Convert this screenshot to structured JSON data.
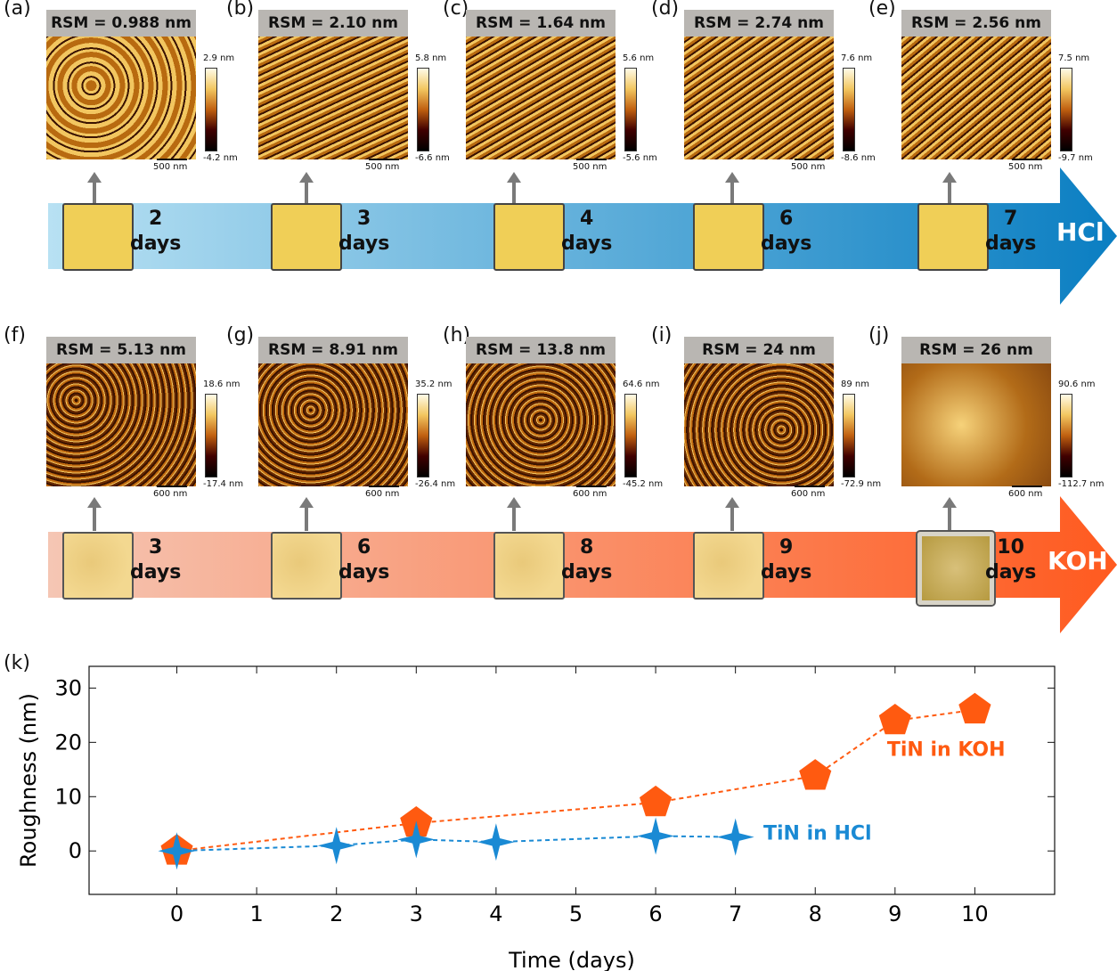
{
  "hcl_row": {
    "band_label": "HCl",
    "arrow_gradient": [
      "#b8e1f3",
      "#0a7ec2"
    ],
    "panels": [
      {
        "letter": "(a)",
        "rsm": "RSM = 0.988 nm",
        "cbar_max": "2.9 nm",
        "cbar_min": "-4.2 nm",
        "scalebar": "500 nm",
        "day_num": "2",
        "day_unit": "days"
      },
      {
        "letter": "(b)",
        "rsm": "RSM = 2.10 nm",
        "cbar_max": "5.8 nm",
        "cbar_min": "-6.6 nm",
        "scalebar": "500 nm",
        "day_num": "3",
        "day_unit": "days"
      },
      {
        "letter": "(c)",
        "rsm": "RSM = 1.64 nm",
        "cbar_max": "5.6 nm",
        "cbar_min": "-5.6 nm",
        "scalebar": "500 nm",
        "day_num": "4",
        "day_unit": "days"
      },
      {
        "letter": "(d)",
        "rsm": "RSM = 2.74 nm",
        "cbar_max": "7.6 nm",
        "cbar_min": "-8.6 nm",
        "scalebar": "500 nm",
        "day_num": "6",
        "day_unit": "days"
      },
      {
        "letter": "(e)",
        "rsm": "RSM = 2.56 nm",
        "cbar_max": "7.5 nm",
        "cbar_min": "-9.7 nm",
        "scalebar": "500 nm",
        "day_num": "7",
        "day_unit": "days"
      }
    ]
  },
  "koh_row": {
    "band_label": "KOH",
    "arrow_gradient": [
      "#f5c6b4",
      "#ff5a1f"
    ],
    "panels": [
      {
        "letter": "(f)",
        "rsm": "RSM = 5.13 nm",
        "cbar_max": "18.6 nm",
        "cbar_min": "-17.4 nm",
        "scalebar": "600 nm",
        "day_num": "3",
        "day_unit": "days"
      },
      {
        "letter": "(g)",
        "rsm": "RSM = 8.91 nm",
        "cbar_max": "35.2 nm",
        "cbar_min": "-26.4 nm",
        "scalebar": "600 nm",
        "day_num": "6",
        "day_unit": "days"
      },
      {
        "letter": "(h)",
        "rsm": "RSM = 13.8 nm",
        "cbar_max": "64.6 nm",
        "cbar_min": "-45.2 nm",
        "scalebar": "600 nm",
        "day_num": "8",
        "day_unit": "days"
      },
      {
        "letter": "(i)",
        "rsm": "RSM = 24 nm",
        "cbar_max": "89 nm",
        "cbar_min": "-72.9 nm",
        "scalebar": "600 nm",
        "day_num": "9",
        "day_unit": "days"
      },
      {
        "letter": "(j)",
        "rsm": "RSM = 26 nm",
        "cbar_max": "90.6 nm",
        "cbar_min": "-112.7 nm",
        "scalebar": "600 nm",
        "day_num": "10",
        "day_unit": "days"
      }
    ]
  },
  "colors": {
    "afm_dark": "#3a1200",
    "afm_mid": "#b86a10",
    "afm_light": "#f2c660",
    "sample_gold": "#f0cf57",
    "koh_series": "#ff5a10",
    "hcl_series": "#1a8ad4"
  },
  "chart_data": {
    "type": "scatter",
    "panel_label": "(k)",
    "xlabel": "Time (days)",
    "ylabel": "Roughness (nm)",
    "xlim": [
      -1.1,
      11
    ],
    "ylim": [
      -8,
      34
    ],
    "xticks": [
      0,
      1,
      2,
      3,
      4,
      5,
      6,
      7,
      8,
      9,
      10
    ],
    "yticks": [
      0,
      10,
      20,
      30
    ],
    "grid": false,
    "series": [
      {
        "name": "TiN in KOH",
        "marker": "pentagon",
        "x": [
          0,
          3,
          6,
          8,
          9,
          10
        ],
        "y": [
          0,
          5.13,
          8.91,
          13.8,
          24,
          26
        ]
      },
      {
        "name": "TiN in HCl",
        "marker": "star4",
        "x": [
          0,
          2,
          3,
          4,
          6,
          7
        ],
        "y": [
          0,
          0.988,
          2.1,
          1.64,
          2.74,
          2.56
        ]
      }
    ]
  }
}
